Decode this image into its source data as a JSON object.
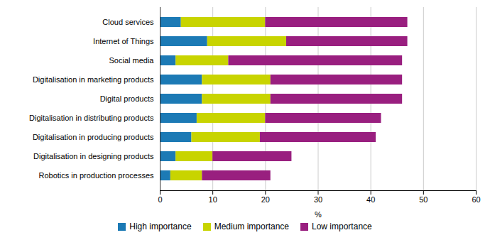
{
  "chart_data": {
    "type": "bar",
    "orientation": "horizontal",
    "stacked": true,
    "categories": [
      "Cloud services",
      "Internet of Things",
      "Social media",
      "Digitalisation in marketing products",
      "Digital products",
      "Digitalisation in distributing products",
      "Digitalisation in producing products",
      "Digitalisation in designing products",
      "Robotics in production processes"
    ],
    "series": [
      {
        "name": "High importance",
        "color": "#1c7ab5",
        "values": [
          4,
          9,
          3,
          8,
          8,
          7,
          6,
          3,
          2
        ]
      },
      {
        "name": "Medium importance",
        "color": "#c8d400",
        "values": [
          16,
          15,
          10,
          13,
          13,
          13,
          13,
          7,
          6
        ]
      },
      {
        "name": "Low importance",
        "color": "#991f7f",
        "values": [
          27,
          23,
          33,
          25,
          25,
          22,
          22,
          15,
          13
        ]
      }
    ],
    "xlabel": "%",
    "xlim": [
      0,
      60
    ],
    "xticks": [
      0,
      10,
      20,
      30,
      40,
      50,
      60
    ],
    "grid": true,
    "legend": "bottom"
  }
}
